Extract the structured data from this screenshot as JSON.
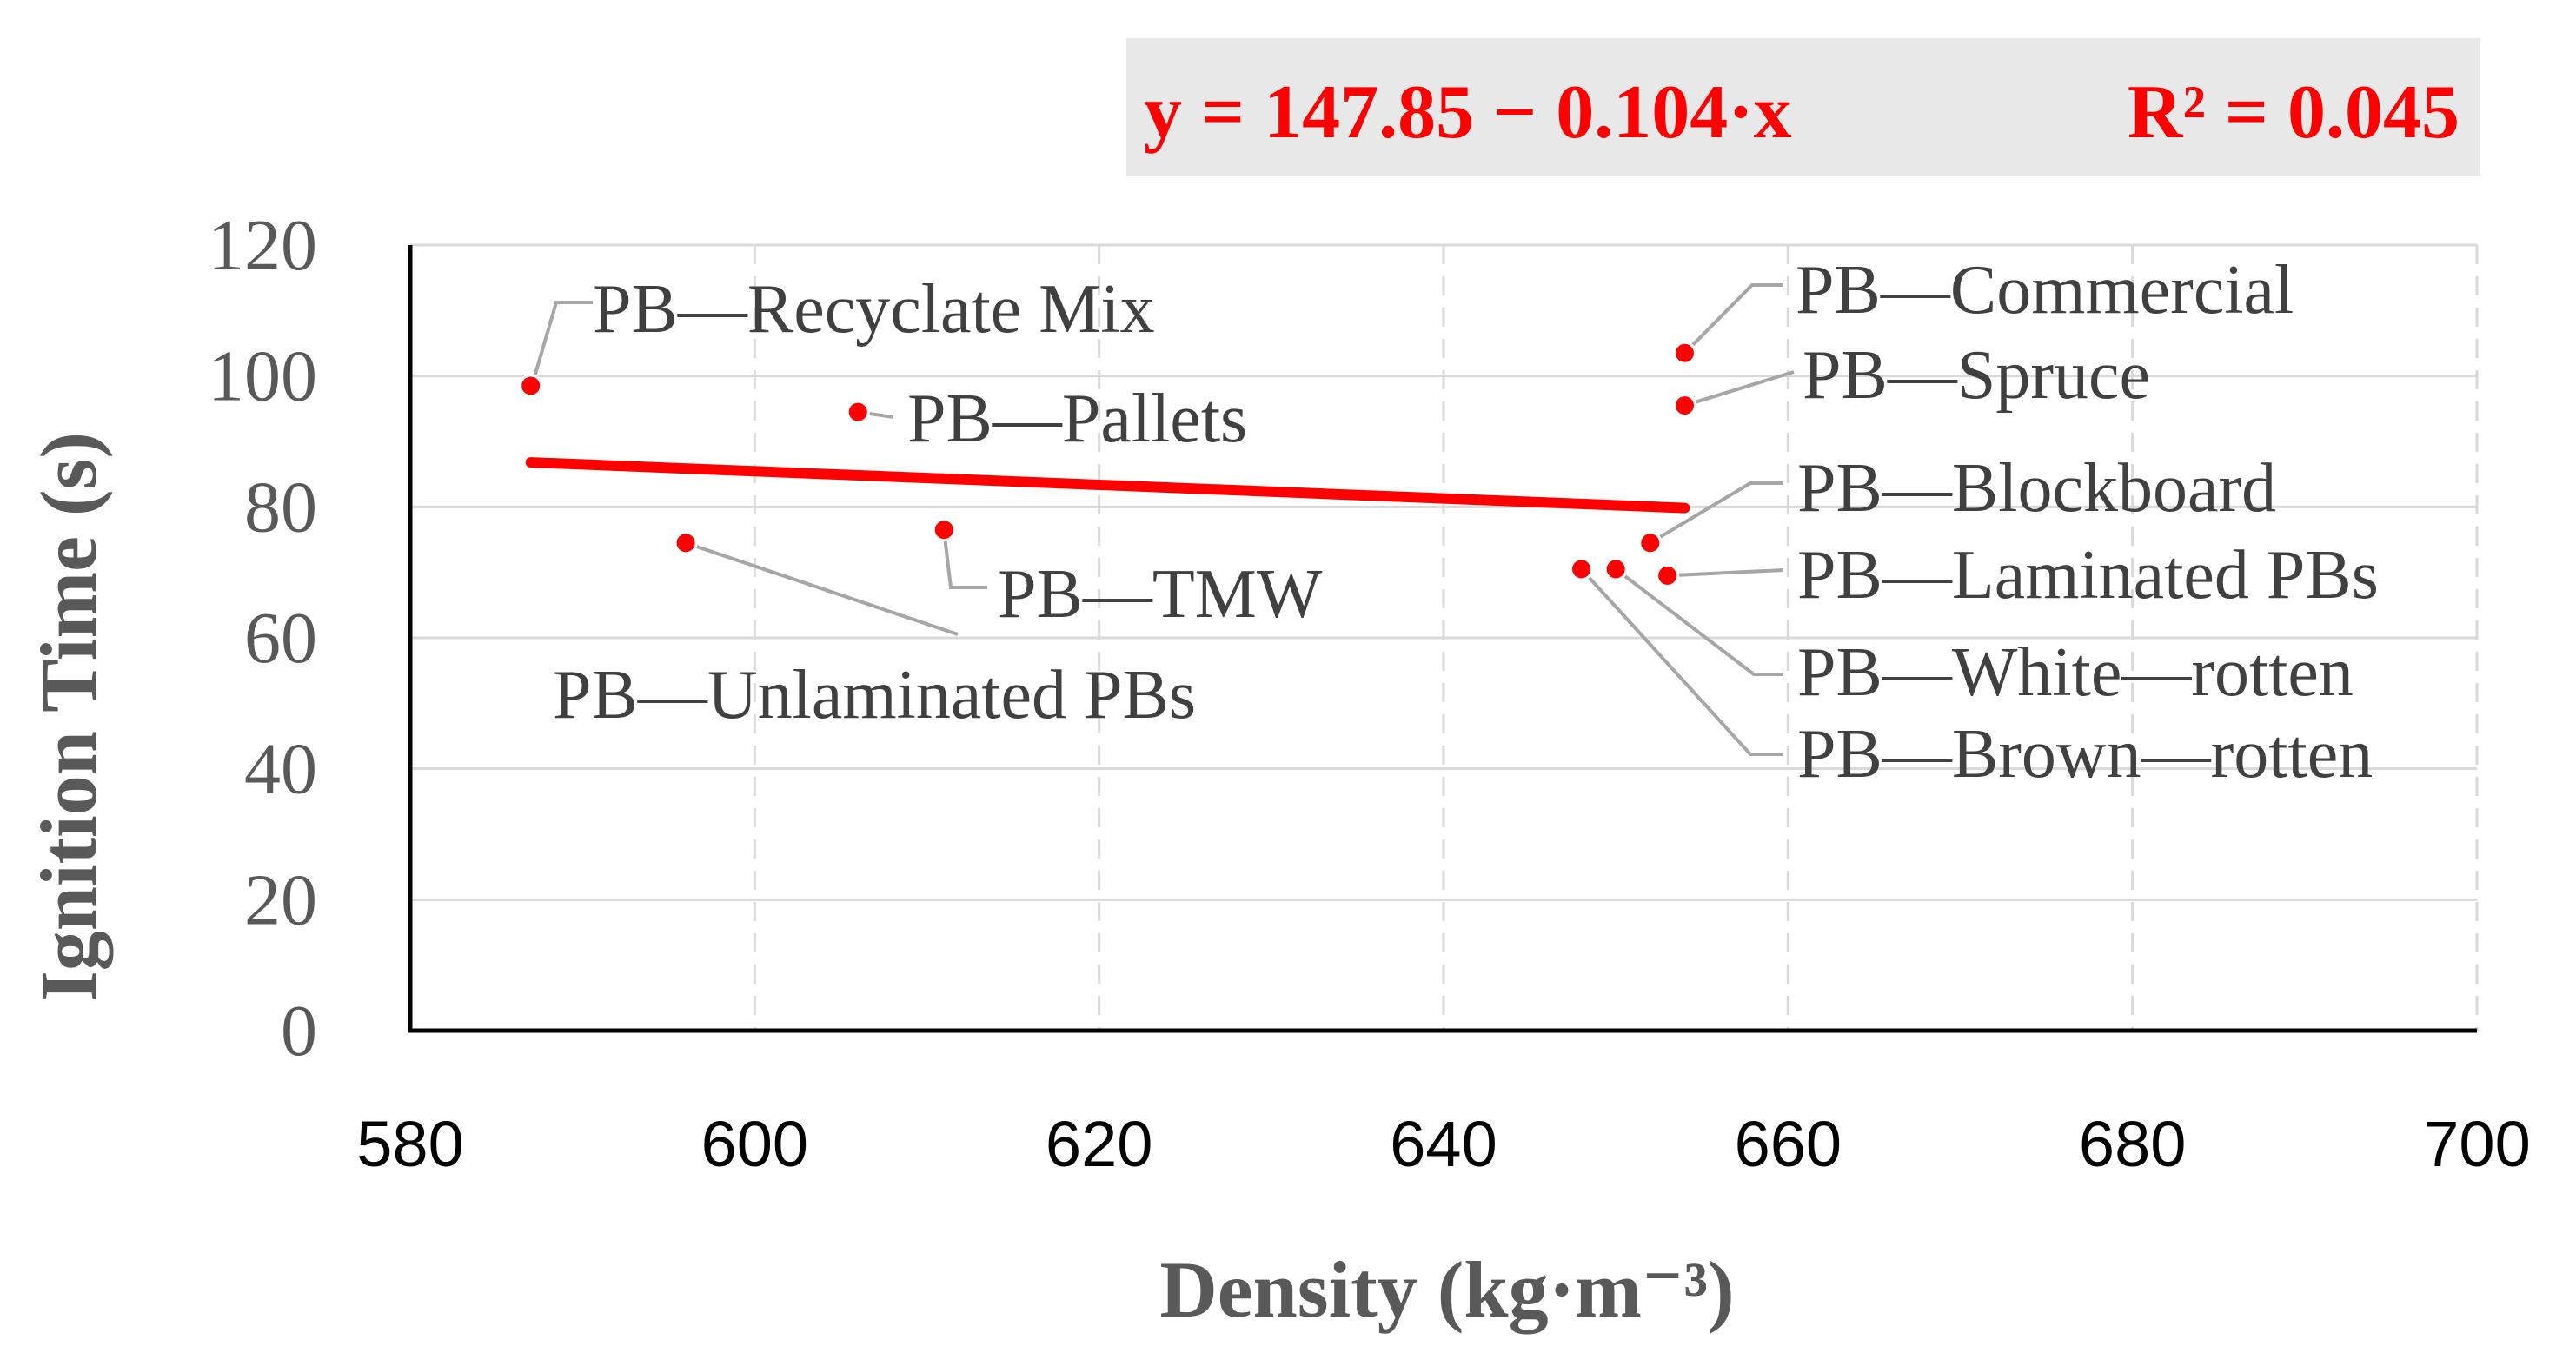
{
  "chart_data": {
    "type": "scatter",
    "xlabel": "Density (kg·m⁻³)",
    "ylabel": "Ignition Time (s)",
    "xlim": [
      580,
      700
    ],
    "ylim": [
      0,
      120
    ],
    "x_ticks": [
      "580",
      "600",
      "620",
      "640",
      "660",
      "680",
      "700"
    ],
    "y_ticks": [
      "0",
      "20",
      "40",
      "60",
      "80",
      "100",
      "120"
    ],
    "grid": "dashed vertical, solid horizontal",
    "colors": {
      "points": "#ff0000",
      "trendline": "#ff0000",
      "equation": "#ff0000",
      "equation_box": "#e8e8e8",
      "leader": "#a6a6a6"
    },
    "points": [
      {
        "label": "PB—Recyclate Mix",
        "x": 587,
        "y": 98.5
      },
      {
        "label": "PB—Pallets",
        "x": 606,
        "y": 94.5
      },
      {
        "label": "PB—Unlaminated PBs",
        "x": 596,
        "y": 74.5
      },
      {
        "label": "PB—TMW",
        "x": 611,
        "y": 76.5
      },
      {
        "label": "PB—Commercial",
        "x": 654,
        "y": 103.5
      },
      {
        "label": "PB—Spruce",
        "x": 654,
        "y": 95.5
      },
      {
        "label": "PB—Blockboard",
        "x": 652,
        "y": 74.5
      },
      {
        "label": "PB—Laminated PBs",
        "x": 653,
        "y": 69.5
      },
      {
        "label": "PB—White—rotten",
        "x": 650,
        "y": 70.5
      },
      {
        "label": "PB—Brown—rotten",
        "x": 648,
        "y": 70.5
      }
    ],
    "trendline": {
      "equation": "y = 147.85 − 0.104·x",
      "r_squared": "R² = 0.045",
      "intercept": 147.85,
      "slope": -0.104,
      "x_range": [
        587,
        654
      ]
    }
  }
}
